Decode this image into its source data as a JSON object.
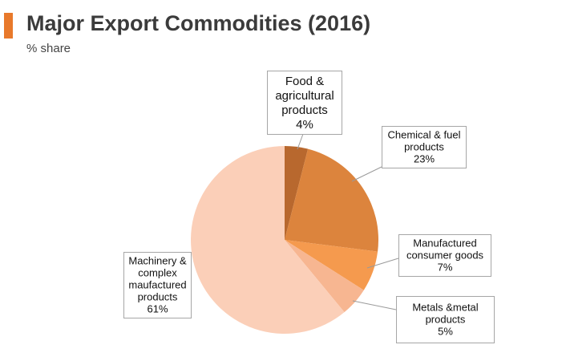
{
  "header": {
    "title": "Major Export Commodities (2016)",
    "subtitle": "% share",
    "accent_color": "#e8792b"
  },
  "chart_data": {
    "type": "pie",
    "title": "Major Export Commodities (2016)",
    "subtitle": "% share",
    "slices": [
      {
        "label": [
          "Food &",
          "agricultural",
          "products",
          "4%"
        ],
        "name": "Food & agricultural products",
        "value": 4,
        "color": "#b8682e"
      },
      {
        "label": [
          "Chemical & fuel",
          "products",
          "23%"
        ],
        "name": "Chemical & fuel products",
        "value": 23,
        "color": "#dc843d"
      },
      {
        "label": [
          "Manufactured",
          "consumer goods",
          "7%"
        ],
        "name": "Manufactured consumer goods",
        "value": 7,
        "color": "#f59a4e"
      },
      {
        "label": [
          "Metals &metal",
          "products",
          "5%"
        ],
        "name": "Metals &metal products",
        "value": 5,
        "color": "#f7b691"
      },
      {
        "label": [
          "Machinery &",
          "complex",
          "maufactured",
          "products",
          "61%"
        ],
        "name": "Machinery & complex maufactured products",
        "value": 61,
        "color": "#fbcfb8"
      }
    ]
  }
}
